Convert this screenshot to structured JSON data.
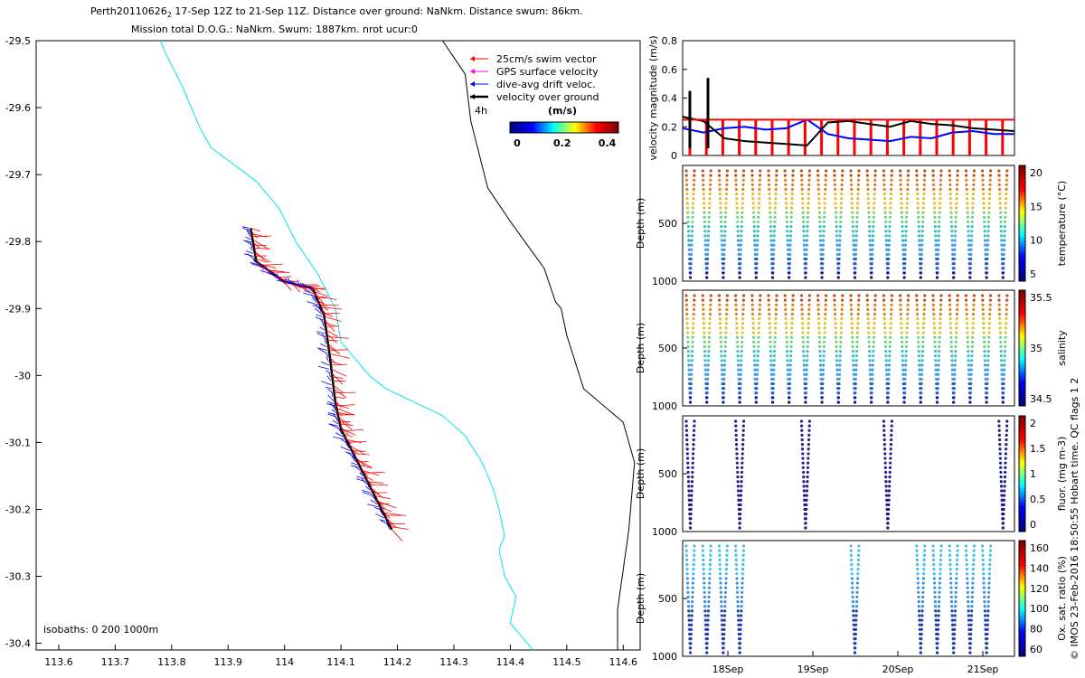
{
  "header": {
    "title_line1": "Perth20110626",
    "title_sub": "2",
    "title_line1_rest": " 17-Sep 12Z to 21-Sep 11Z. Distance over ground: NaNkm. Distance swum: 86km.",
    "title_line2": "Mission total D.O.G.: NaNkm. Swum: 1887km. nrot ucur:0"
  },
  "map": {
    "x_ticks": [
      "113.6",
      "113.7",
      "113.8",
      "113.9",
      "114",
      "114.1",
      "114.2",
      "114.3",
      "114.4",
      "114.5",
      "114.6"
    ],
    "y_ticks": [
      "-29.5",
      "-29.6",
      "-29.7",
      "-29.8",
      "-29.9",
      "-30",
      "-30.1",
      "-30.2",
      "-30.3",
      "-30.4"
    ],
    "xlim": [
      113.56,
      114.63
    ],
    "ylim": [
      -30.41,
      -29.5
    ],
    "isobath_label": "isobaths: 0   200   1000m",
    "legend": [
      {
        "label": "25cm/s swim vector",
        "color": "#ff0000"
      },
      {
        "label": "GPS surface velocity",
        "color": "#ff00ff"
      },
      {
        "label": "dive-avg drift veloc.",
        "color": "#0000ff"
      },
      {
        "label": "velocity over ground",
        "color": "#000000"
      }
    ],
    "time_scale_label": "4h",
    "colorbar_units": "(m/s)",
    "colorbar_ticks": [
      "0",
      "0.2",
      "0.4"
    ],
    "colors": {
      "isobath_200": "#00e5ee",
      "isobath_1000": "#000000",
      "swim": "#ff0000",
      "drift": "#0000ff"
    }
  },
  "panels": {
    "velocity": {
      "ylabel": "velocity magnitude (m/s)",
      "ticks": [
        "0",
        "0.2",
        "0.4",
        "0.6",
        "0.8"
      ]
    },
    "temperature": {
      "ylabel": "Depth (m)",
      "cbar_label": "temperature (°C)",
      "cbar_ticks": [
        "5",
        "10",
        "15",
        "20"
      ],
      "yticks": [
        "500",
        "1000"
      ]
    },
    "salinity": {
      "ylabel": "Depth (m)",
      "cbar_label": "salinity",
      "cbar_ticks": [
        "34.5",
        "35",
        "35.5"
      ],
      "yticks": [
        "500",
        "1000"
      ]
    },
    "fluor": {
      "ylabel": "Depth (m)",
      "cbar_label": "fluor. (mg m-3)",
      "cbar_ticks": [
        "0",
        "0.5",
        "1",
        "1.5",
        "2"
      ],
      "yticks": [
        "500",
        "1000"
      ]
    },
    "oxygen": {
      "ylabel": "Depth (m)",
      "cbar_label": "Ox. sat. ratio (%)",
      "cbar_ticks": [
        "60",
        "80",
        "100",
        "120",
        "140",
        "160"
      ],
      "yticks": [
        "500",
        "1000"
      ]
    },
    "x_ticks": [
      "18Sep",
      "19Sep",
      "20Sep",
      "21Sep"
    ]
  },
  "footer": {
    "credit": "© IMOS 23-Feb-2016 18:50:55 Hobart time. QC flags 1  2"
  },
  "chart_data": [
    {
      "type": "line",
      "title": "Perth20110626_2 17-Sep 12Z to 21-Sep 11Z",
      "xlabel": "",
      "ylabel": "",
      "xlim": [
        113.56,
        114.63
      ],
      "ylim": [
        -30.41,
        -29.5
      ],
      "series": [
        {
          "name": "isobath 200m",
          "x": [
            113.78,
            113.79,
            113.82,
            113.85,
            113.87,
            113.95,
            113.99,
            114.02,
            114.06,
            114.09,
            114.1,
            114.15,
            114.18,
            114.23,
            114.28,
            114.32,
            114.35,
            114.37,
            114.38,
            114.39,
            114.38,
            114.39,
            114.41,
            114.4,
            114.44
          ],
          "y": [
            -29.5,
            -29.52,
            -29.57,
            -29.63,
            -29.66,
            -29.71,
            -29.75,
            -29.8,
            -29.85,
            -29.9,
            -29.95,
            -30.0,
            -30.02,
            -30.04,
            -30.06,
            -30.09,
            -30.13,
            -30.17,
            -30.2,
            -30.24,
            -30.26,
            -30.3,
            -30.33,
            -30.37,
            -30.41
          ]
        },
        {
          "name": "isobath 1000m",
          "x": [
            114.28,
            114.32,
            114.33,
            114.36,
            114.4,
            114.46,
            114.48,
            114.49,
            114.5,
            114.53,
            114.6,
            114.62,
            114.61,
            114.59,
            114.59
          ],
          "y": [
            -29.5,
            -29.55,
            -29.62,
            -29.72,
            -29.77,
            -29.84,
            -29.89,
            -29.9,
            -29.94,
            -30.02,
            -30.07,
            -30.13,
            -30.23,
            -30.35,
            -30.41
          ]
        },
        {
          "name": "track",
          "x": [
            113.94,
            113.95,
            114.0,
            114.05,
            114.07,
            114.08,
            114.09,
            114.1,
            114.13,
            114.16,
            114.19
          ],
          "y": [
            -29.78,
            -29.83,
            -29.86,
            -29.87,
            -29.91,
            -29.97,
            -30.04,
            -30.08,
            -30.13,
            -30.18,
            -30.23
          ]
        }
      ]
    },
    {
      "type": "line",
      "xlabel": "",
      "ylabel": "velocity magnitude (m/s)",
      "ylim": [
        0,
        0.8
      ],
      "x": [
        0.0,
        0.25,
        0.5,
        0.75,
        1.0,
        1.25,
        1.5,
        1.75,
        2.0,
        2.25,
        2.5,
        2.75,
        3.0,
        3.25,
        3.5,
        3.75,
        4.0
      ],
      "series": [
        {
          "name": "dive-avg drift veloc.",
          "values": [
            0.19,
            0.16,
            0.19,
            0.2,
            0.18,
            0.19,
            0.25,
            0.15,
            0.12,
            0.11,
            0.1,
            0.13,
            0.12,
            0.16,
            0.17,
            0.15,
            0.15
          ]
        },
        {
          "name": "velocity over ground",
          "values": [
            0.27,
            0.24,
            0.12,
            0.1,
            0.09,
            0.08,
            0.07,
            0.23,
            0.24,
            0.22,
            0.2,
            0.24,
            0.22,
            0.21,
            0.19,
            0.18,
            0.17
          ]
        },
        {
          "name": "25cm/s swim vector",
          "values": [
            0.25,
            0.25,
            0.25,
            0.25,
            0.25,
            0.25,
            0.25,
            0.25,
            0.25,
            0.25,
            0.25,
            0.25,
            0.25,
            0.25,
            0.25,
            0.25,
            0.25
          ]
        }
      ]
    }
  ]
}
